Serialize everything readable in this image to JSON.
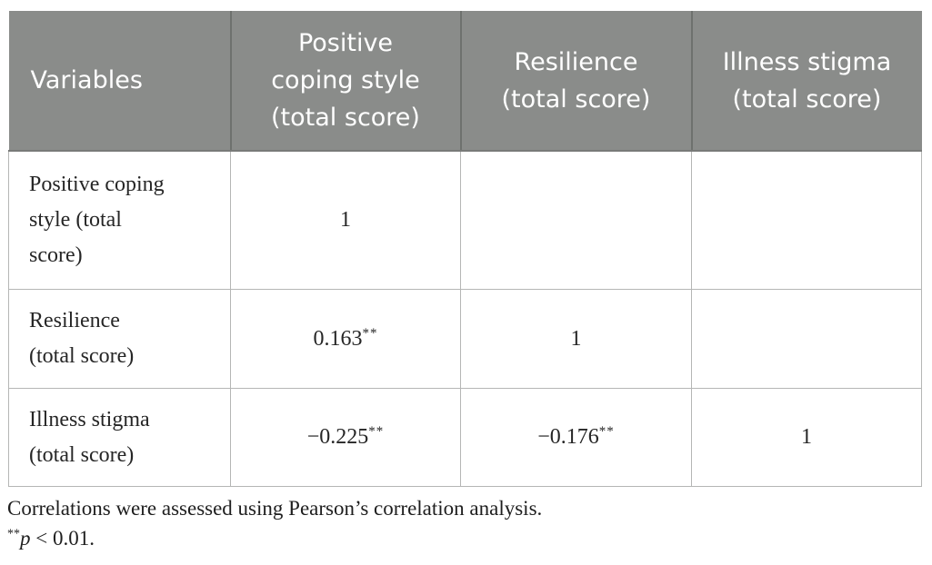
{
  "colors": {
    "header_bg": "#8a8c8a",
    "header_divider": "#6e716e",
    "header_text": "#ffffff",
    "body_border": "#b5b6b5",
    "body_text": "#262626",
    "page_bg": "#ffffff"
  },
  "table": {
    "header_cells": [
      {
        "id": "variables",
        "label": "Variables",
        "lines": [
          "Variables"
        ]
      },
      {
        "id": "positive-coping",
        "label": "Positive coping style (total score)",
        "lines": [
          "Positive",
          "coping style",
          "(total score)"
        ]
      },
      {
        "id": "resilience",
        "label": "Resilience (total score)",
        "lines": [
          "Resilience",
          "(total score)"
        ]
      },
      {
        "id": "illness-stigma",
        "label": "Illness stigma (total score)",
        "lines": [
          "Illness stigma",
          "(total score)"
        ]
      }
    ],
    "rows": [
      {
        "id": "positive-coping",
        "label": "Positive coping style (total score)",
        "label_lines": [
          "Positive coping",
          "style (total",
          "score)"
        ],
        "cells": [
          {
            "value": "1",
            "sup": ""
          },
          {
            "value": "",
            "sup": ""
          },
          {
            "value": "",
            "sup": ""
          }
        ]
      },
      {
        "id": "resilience",
        "label": "Resilience (total score)",
        "label_lines": [
          "Resilience",
          "(total score)"
        ],
        "cells": [
          {
            "value": "0.163",
            "sup": "**"
          },
          {
            "value": "1",
            "sup": ""
          },
          {
            "value": "",
            "sup": ""
          }
        ]
      },
      {
        "id": "illness-stigma",
        "label": "Illness stigma (total score)",
        "label_lines": [
          "Illness stigma",
          "(total score)"
        ],
        "cells": [
          {
            "value": "−0.225",
            "sup": "**"
          },
          {
            "value": "−0.176",
            "sup": "**"
          },
          {
            "value": "1",
            "sup": ""
          }
        ]
      }
    ]
  },
  "footnotes": {
    "line1": "Correlations were assessed using Pearson’s correlation analysis.",
    "line2": {
      "sup": "**",
      "italic": "p",
      "rest": " < 0.01."
    }
  }
}
